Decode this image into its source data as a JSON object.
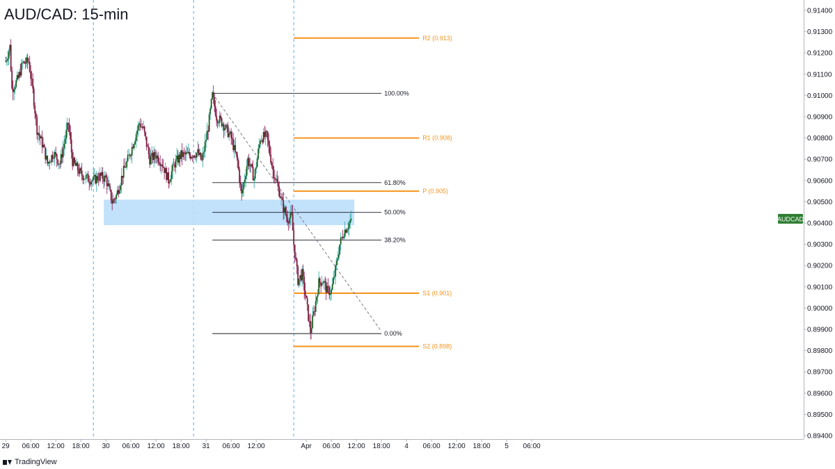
{
  "header": {
    "title": "AUD/CAD: 15-min"
  },
  "brand": {
    "name": "TradingView"
  },
  "colors": {
    "bull": "#26a69a",
    "bear": "#880e4f",
    "body_bull": "#1b5e20",
    "body_bear": "#7b1e3a",
    "pivot": "#f7931a",
    "fib": "#131722",
    "zone": "#bbdefb",
    "session": "#2196f3",
    "badge": "#2e7d32"
  },
  "chart_data": {
    "type": "candlestick",
    "symbol_badge": "AUDCAD",
    "current_price": 0.9042,
    "ylim": [
      0.894,
      0.914
    ],
    "y_ticks": [
      "0.91400",
      "0.91300",
      "0.91200",
      "0.91100",
      "0.91000",
      "0.90900",
      "0.90800",
      "0.90700",
      "0.90600",
      "0.90500",
      "0.90400",
      "0.90300",
      "0.90200",
      "0.90100",
      "0.90000",
      "0.89900",
      "0.89800",
      "0.89700",
      "0.89600",
      "0.89500",
      "0.89400"
    ],
    "x_ticks": [
      {
        "t": 0,
        "label": "29"
      },
      {
        "t": 6,
        "label": "06:00"
      },
      {
        "t": 12,
        "label": "12:00"
      },
      {
        "t": 18,
        "label": "18:00"
      },
      {
        "t": 24,
        "label": "30"
      },
      {
        "t": 30,
        "label": "06:00"
      },
      {
        "t": 36,
        "label": "12:00"
      },
      {
        "t": 42,
        "label": "18:00"
      },
      {
        "t": 48,
        "label": "31"
      },
      {
        "t": 54,
        "label": "06:00"
      },
      {
        "t": 60,
        "label": "12:00"
      },
      {
        "t": 72,
        "label": "Apr"
      },
      {
        "t": 78,
        "label": "06:00"
      },
      {
        "t": 84,
        "label": "12:00"
      },
      {
        "t": 90,
        "label": "18:00"
      },
      {
        "t": 96,
        "label": "4"
      },
      {
        "t": 102,
        "label": "06:00"
      },
      {
        "t": 108,
        "label": "12:00"
      },
      {
        "t": 114,
        "label": "18:00"
      },
      {
        "t": 120,
        "label": "5"
      },
      {
        "t": 126,
        "label": "06:00"
      }
    ],
    "x_range_hours": [
      0,
      127
    ],
    "session_breaks_hours": [
      21,
      45,
      69
    ],
    "pivot_levels": [
      {
        "label": "R2 (0.913)",
        "value": 0.9127
      },
      {
        "label": "R1 (0.908)",
        "value": 0.908
      },
      {
        "label": "P (0.905)",
        "value": 0.9055
      },
      {
        "label": "S1 (0.901)",
        "value": 0.9007
      },
      {
        "label": "S2 (0.898)",
        "value": 0.8982
      }
    ],
    "pivot_span_hours": [
      69,
      99
    ],
    "fib_levels": [
      {
        "label": "100.00%",
        "value": 0.9101
      },
      {
        "label": "61.80%",
        "value": 0.9059
      },
      {
        "label": "50.00%",
        "value": 0.9045
      },
      {
        "label": "38.20%",
        "value": 0.9032
      },
      {
        "label": "0.00%",
        "value": 0.8988
      }
    ],
    "fib_span_hours": [
      49.5,
      90
    ],
    "zone": {
      "x0": 23.5,
      "x1": 83.5,
      "y0": 0.9039,
      "y1": 0.9051
    },
    "trendline": {
      "x0": 49.5,
      "y0": 0.9101,
      "x1": 90,
      "y1": 0.8989
    },
    "price_path": [
      [
        0,
        0.9116
      ],
      [
        1,
        0.9123
      ],
      [
        1.5,
        0.9103
      ],
      [
        3,
        0.9108
      ],
      [
        4,
        0.9115
      ],
      [
        5.5,
        0.9116
      ],
      [
        6.5,
        0.9102
      ],
      [
        7.5,
        0.9084
      ],
      [
        9,
        0.9076
      ],
      [
        10,
        0.9068
      ],
      [
        11.5,
        0.9073
      ],
      [
        13,
        0.9068
      ],
      [
        15,
        0.9087
      ],
      [
        16,
        0.9069
      ],
      [
        18,
        0.9063
      ],
      [
        19.5,
        0.9061
      ],
      [
        21,
        0.906
      ],
      [
        22.5,
        0.9062
      ],
      [
        24,
        0.9061
      ],
      [
        25.5,
        0.905
      ],
      [
        26.5,
        0.9053
      ],
      [
        28,
        0.9063
      ],
      [
        30,
        0.9074
      ],
      [
        32,
        0.9087
      ],
      [
        33,
        0.9084
      ],
      [
        34.5,
        0.907
      ],
      [
        36,
        0.9072
      ],
      [
        37.5,
        0.9068
      ],
      [
        39,
        0.906
      ],
      [
        40.5,
        0.9068
      ],
      [
        42,
        0.9072
      ],
      [
        44,
        0.9072
      ],
      [
        46,
        0.9073
      ],
      [
        47,
        0.9069
      ],
      [
        48.5,
        0.9085
      ],
      [
        49.5,
        0.91
      ],
      [
        50.5,
        0.909
      ],
      [
        52,
        0.9087
      ],
      [
        54,
        0.908
      ],
      [
        55.5,
        0.9069
      ],
      [
        56.5,
        0.9053
      ],
      [
        58,
        0.907
      ],
      [
        59.5,
        0.9061
      ],
      [
        61,
        0.908
      ],
      [
        62.5,
        0.9081
      ],
      [
        64,
        0.9065
      ],
      [
        65.5,
        0.9055
      ],
      [
        66.5,
        0.9047
      ],
      [
        67.5,
        0.9042
      ],
      [
        68.5,
        0.9043
      ],
      [
        69,
        0.903
      ],
      [
        70,
        0.9013
      ],
      [
        71,
        0.9016
      ],
      [
        72,
        0.9003
      ],
      [
        73,
        0.8989
      ],
      [
        74,
        0.9
      ],
      [
        75,
        0.9012
      ],
      [
        76,
        0.9013
      ],
      [
        77,
        0.9008
      ],
      [
        78,
        0.9008
      ],
      [
        79,
        0.9018
      ],
      [
        80,
        0.903
      ],
      [
        81,
        0.9036
      ],
      [
        82,
        0.9039
      ],
      [
        82.8,
        0.9042
      ]
    ]
  }
}
